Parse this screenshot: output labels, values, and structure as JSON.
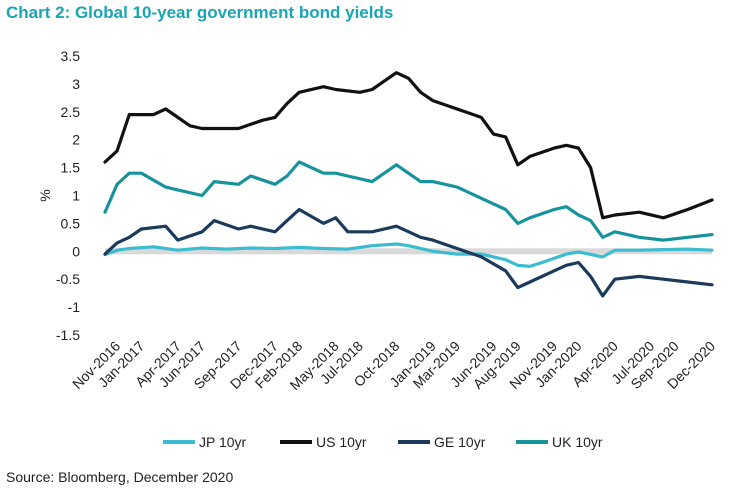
{
  "title": "Chart 2: Global 10-year government bond yields",
  "source": "Source: Bloomberg, December 2020",
  "colors": {
    "title": "#1aa5b4",
    "zero_band": "#d9d9d9"
  },
  "chart_data": {
    "type": "line",
    "ylabel": "%",
    "ylim": [
      -1.5,
      3.5
    ],
    "yticks": [
      "3.5",
      "3",
      "2.5",
      "2",
      "1.5",
      "1",
      "0.5",
      "0",
      "-0.5",
      "-1",
      "-1.5"
    ],
    "ytick_values": [
      3.5,
      3,
      2.5,
      2,
      1.5,
      1,
      0.5,
      0,
      -0.5,
      -1,
      -1.5
    ],
    "xlim": [
      "2016-10",
      "2020-12"
    ],
    "xticks": [
      "Nov-2016",
      "Jan-2017",
      "Apr-2017",
      "Jun-2017",
      "Sep-2017",
      "Dec-2017",
      "Feb-2018",
      "May-2018",
      "Jul-2018",
      "Oct-2018",
      "Jan-2019",
      "Mar-2019",
      "Jun-2019",
      "Aug-2019",
      "Nov-2019",
      "Jan-2020",
      "Apr-2020",
      "Jul-2020",
      "Sep-2020",
      "Dec-2020"
    ],
    "xtick_dates": [
      "2016-11",
      "2017-01",
      "2017-04",
      "2017-06",
      "2017-09",
      "2017-12",
      "2018-02",
      "2018-05",
      "2018-07",
      "2018-10",
      "2019-01",
      "2019-03",
      "2019-06",
      "2019-08",
      "2019-11",
      "2020-01",
      "2020-04",
      "2020-07",
      "2020-09",
      "2020-12"
    ],
    "legend_position": "bottom",
    "series": [
      {
        "name": "JP 10yr",
        "color": "#3bbcd0",
        "x": [
          "2016-10",
          "2016-11",
          "2016-12",
          "2017-02",
          "2017-04",
          "2017-06",
          "2017-08",
          "2017-10",
          "2017-12",
          "2018-02",
          "2018-04",
          "2018-06",
          "2018-08",
          "2018-10",
          "2018-11",
          "2019-01",
          "2019-03",
          "2019-05",
          "2019-07",
          "2019-08",
          "2019-09",
          "2019-10",
          "2019-12",
          "2020-01",
          "2020-03",
          "2020-04",
          "2020-06",
          "2020-08",
          "2020-10",
          "2020-12"
        ],
        "values": [
          -0.06,
          0.02,
          0.05,
          0.08,
          0.02,
          0.06,
          0.04,
          0.06,
          0.05,
          0.07,
          0.05,
          0.04,
          0.1,
          0.13,
          0.1,
          0.0,
          -0.05,
          -0.05,
          -0.15,
          -0.25,
          -0.27,
          -0.2,
          -0.05,
          -0.01,
          -0.1,
          0.02,
          0.02,
          0.03,
          0.04,
          0.02
        ]
      },
      {
        "name": "US 10yr",
        "color": "#111111",
        "x": [
          "2016-10",
          "2016-11",
          "2016-12",
          "2017-02",
          "2017-03",
          "2017-05",
          "2017-06",
          "2017-08",
          "2017-09",
          "2017-11",
          "2017-12",
          "2018-01",
          "2018-02",
          "2018-04",
          "2018-05",
          "2018-07",
          "2018-08",
          "2018-10",
          "2018-11",
          "2018-12",
          "2019-01",
          "2019-03",
          "2019-05",
          "2019-06",
          "2019-07",
          "2019-08",
          "2019-09",
          "2019-11",
          "2019-12",
          "2020-01",
          "2020-02",
          "2020-03",
          "2020-04",
          "2020-06",
          "2020-08",
          "2020-10",
          "2020-12"
        ],
        "values": [
          1.6,
          1.8,
          2.45,
          2.45,
          2.55,
          2.25,
          2.2,
          2.2,
          2.2,
          2.35,
          2.4,
          2.65,
          2.85,
          2.95,
          2.9,
          2.85,
          2.9,
          3.2,
          3.1,
          2.85,
          2.7,
          2.55,
          2.4,
          2.1,
          2.05,
          1.55,
          1.7,
          1.85,
          1.9,
          1.85,
          1.5,
          0.6,
          0.65,
          0.7,
          0.6,
          0.75,
          0.92
        ]
      },
      {
        "name": "GE 10yr",
        "color": "#1b3a5c",
        "x": [
          "2016-10",
          "2016-11",
          "2016-12",
          "2017-01",
          "2017-03",
          "2017-04",
          "2017-06",
          "2017-07",
          "2017-09",
          "2017-10",
          "2017-12",
          "2018-01",
          "2018-02",
          "2018-04",
          "2018-05",
          "2018-06",
          "2018-08",
          "2018-10",
          "2018-12",
          "2019-01",
          "2019-03",
          "2019-05",
          "2019-07",
          "2019-08",
          "2019-09",
          "2019-11",
          "2019-12",
          "2020-01",
          "2020-02",
          "2020-03",
          "2020-04",
          "2020-06",
          "2020-08",
          "2020-10",
          "2020-12"
        ],
        "values": [
          -0.05,
          0.15,
          0.25,
          0.4,
          0.45,
          0.2,
          0.35,
          0.55,
          0.4,
          0.45,
          0.35,
          0.55,
          0.75,
          0.5,
          0.6,
          0.35,
          0.35,
          0.45,
          0.25,
          0.2,
          0.05,
          -0.1,
          -0.35,
          -0.65,
          -0.55,
          -0.35,
          -0.25,
          -0.2,
          -0.45,
          -0.8,
          -0.5,
          -0.45,
          -0.5,
          -0.55,
          -0.6
        ]
      },
      {
        "name": "UK 10yr",
        "color": "#17939e",
        "x": [
          "2016-10",
          "2016-11",
          "2016-12",
          "2017-01",
          "2017-03",
          "2017-04",
          "2017-06",
          "2017-07",
          "2017-09",
          "2017-10",
          "2017-12",
          "2018-01",
          "2018-02",
          "2018-04",
          "2018-05",
          "2018-06",
          "2018-08",
          "2018-10",
          "2018-12",
          "2019-01",
          "2019-03",
          "2019-05",
          "2019-07",
          "2019-08",
          "2019-09",
          "2019-11",
          "2019-12",
          "2020-01",
          "2020-02",
          "2020-03",
          "2020-04",
          "2020-06",
          "2020-08",
          "2020-10",
          "2020-12"
        ],
        "values": [
          0.7,
          1.2,
          1.4,
          1.4,
          1.15,
          1.1,
          1.0,
          1.25,
          1.2,
          1.35,
          1.2,
          1.35,
          1.6,
          1.4,
          1.4,
          1.35,
          1.25,
          1.55,
          1.25,
          1.25,
          1.15,
          0.95,
          0.75,
          0.5,
          0.6,
          0.75,
          0.8,
          0.65,
          0.55,
          0.25,
          0.35,
          0.25,
          0.2,
          0.25,
          0.3
        ]
      }
    ]
  }
}
